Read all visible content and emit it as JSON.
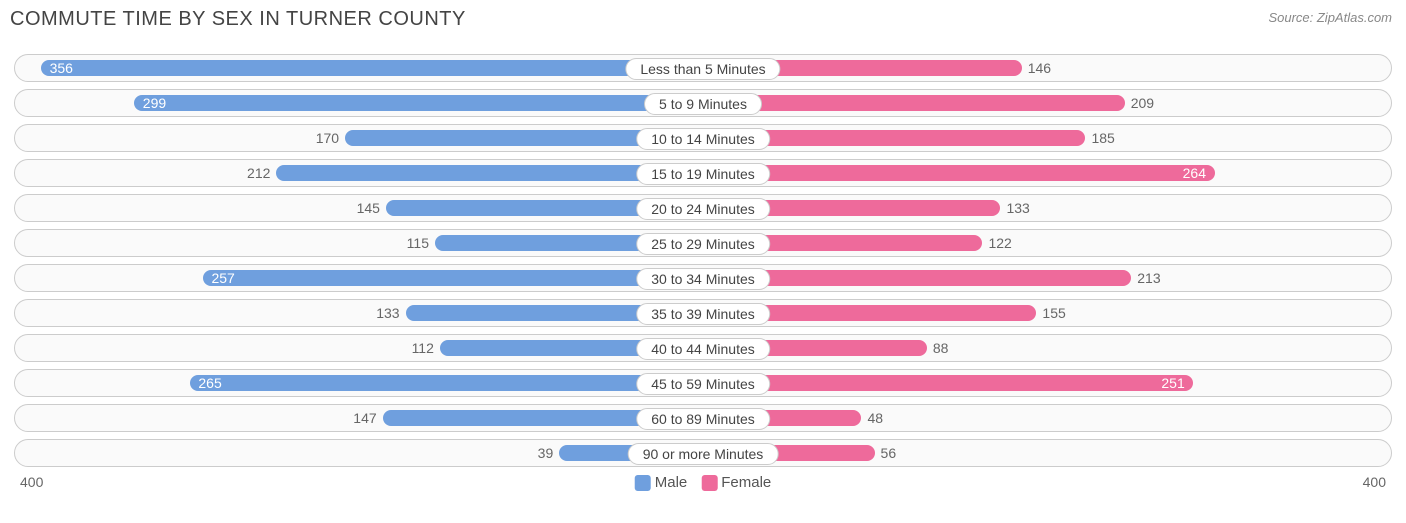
{
  "title": "COMMUTE TIME BY SEX IN TURNER COUNTY",
  "source": "Source: ZipAtlas.com",
  "chart": {
    "type": "diverging-bar",
    "max_value": 400,
    "male_color": "#6f9fde",
    "female_color": "#ee6a9b",
    "row_bg": "#fafafa",
    "row_border": "#cccccc",
    "male_label": "Male",
    "female_label": "Female",
    "axis_left": "400",
    "axis_right": "400",
    "inside_label_threshold": 230,
    "rows": [
      {
        "category": "Less than 5 Minutes",
        "male": 356,
        "female": 146
      },
      {
        "category": "5 to 9 Minutes",
        "male": 299,
        "female": 209
      },
      {
        "category": "10 to 14 Minutes",
        "male": 170,
        "female": 185
      },
      {
        "category": "15 to 19 Minutes",
        "male": 212,
        "female": 264
      },
      {
        "category": "20 to 24 Minutes",
        "male": 145,
        "female": 133
      },
      {
        "category": "25 to 29 Minutes",
        "male": 115,
        "female": 122
      },
      {
        "category": "30 to 34 Minutes",
        "male": 257,
        "female": 213
      },
      {
        "category": "35 to 39 Minutes",
        "male": 133,
        "female": 155
      },
      {
        "category": "40 to 44 Minutes",
        "male": 112,
        "female": 88
      },
      {
        "category": "45 to 59 Minutes",
        "male": 265,
        "female": 251
      },
      {
        "category": "60 to 89 Minutes",
        "male": 147,
        "female": 48
      },
      {
        "category": "90 or more Minutes",
        "male": 39,
        "female": 56
      }
    ]
  }
}
